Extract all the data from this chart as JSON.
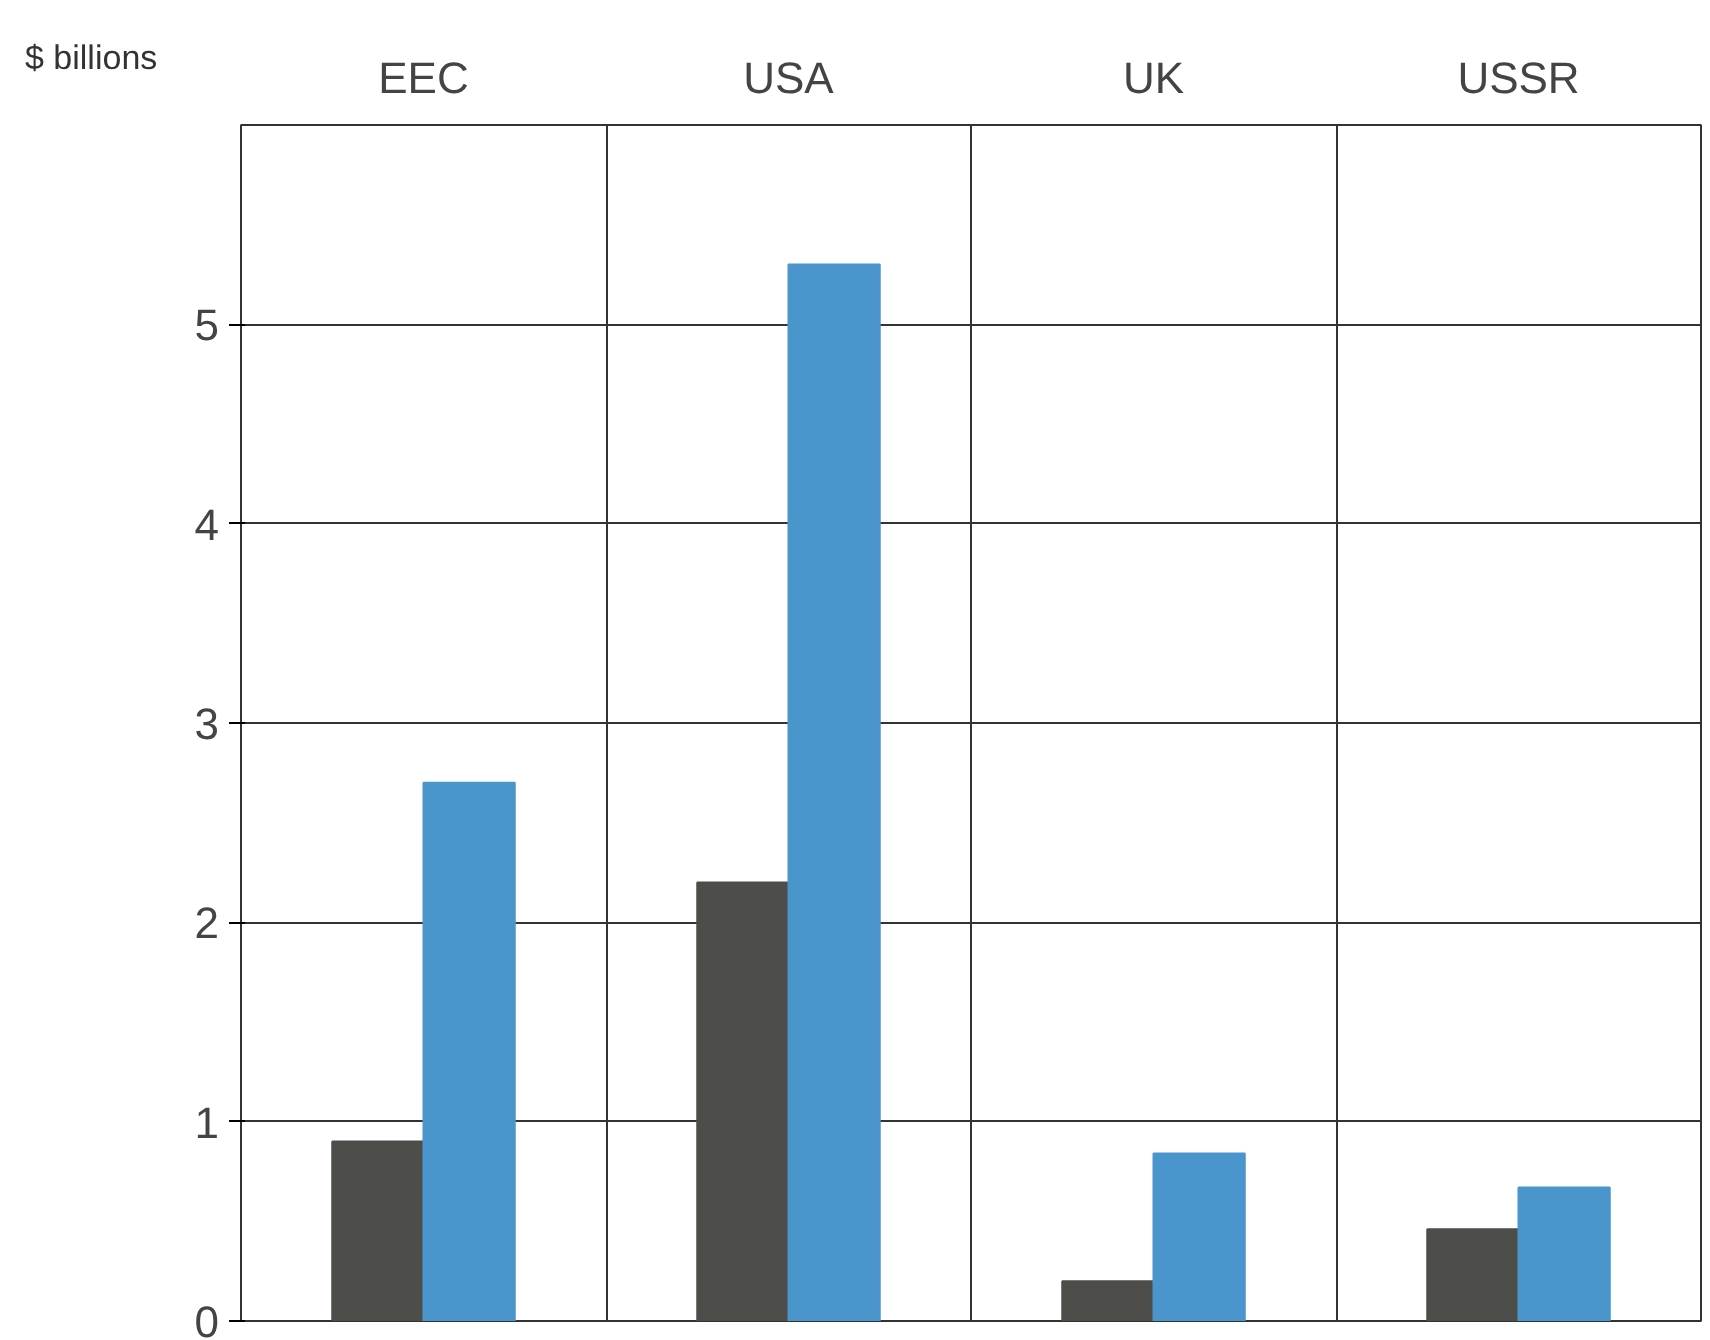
{
  "chart_data": {
    "type": "bar",
    "ylabel": "$ billions",
    "categories": [
      "EEC",
      "USA",
      "UK",
      "USSR"
    ],
    "series": [
      {
        "color": "#4d4d4a",
        "values": [
          0.9,
          2.2,
          0.2,
          0.46
        ]
      },
      {
        "color": "#4a96cc",
        "values": [
          2.7,
          5.3,
          0.84,
          0.67
        ]
      }
    ],
    "ylim": [
      0,
      6
    ],
    "yticks": [
      0,
      1,
      2,
      3,
      4,
      5
    ],
    "grid": true
  }
}
